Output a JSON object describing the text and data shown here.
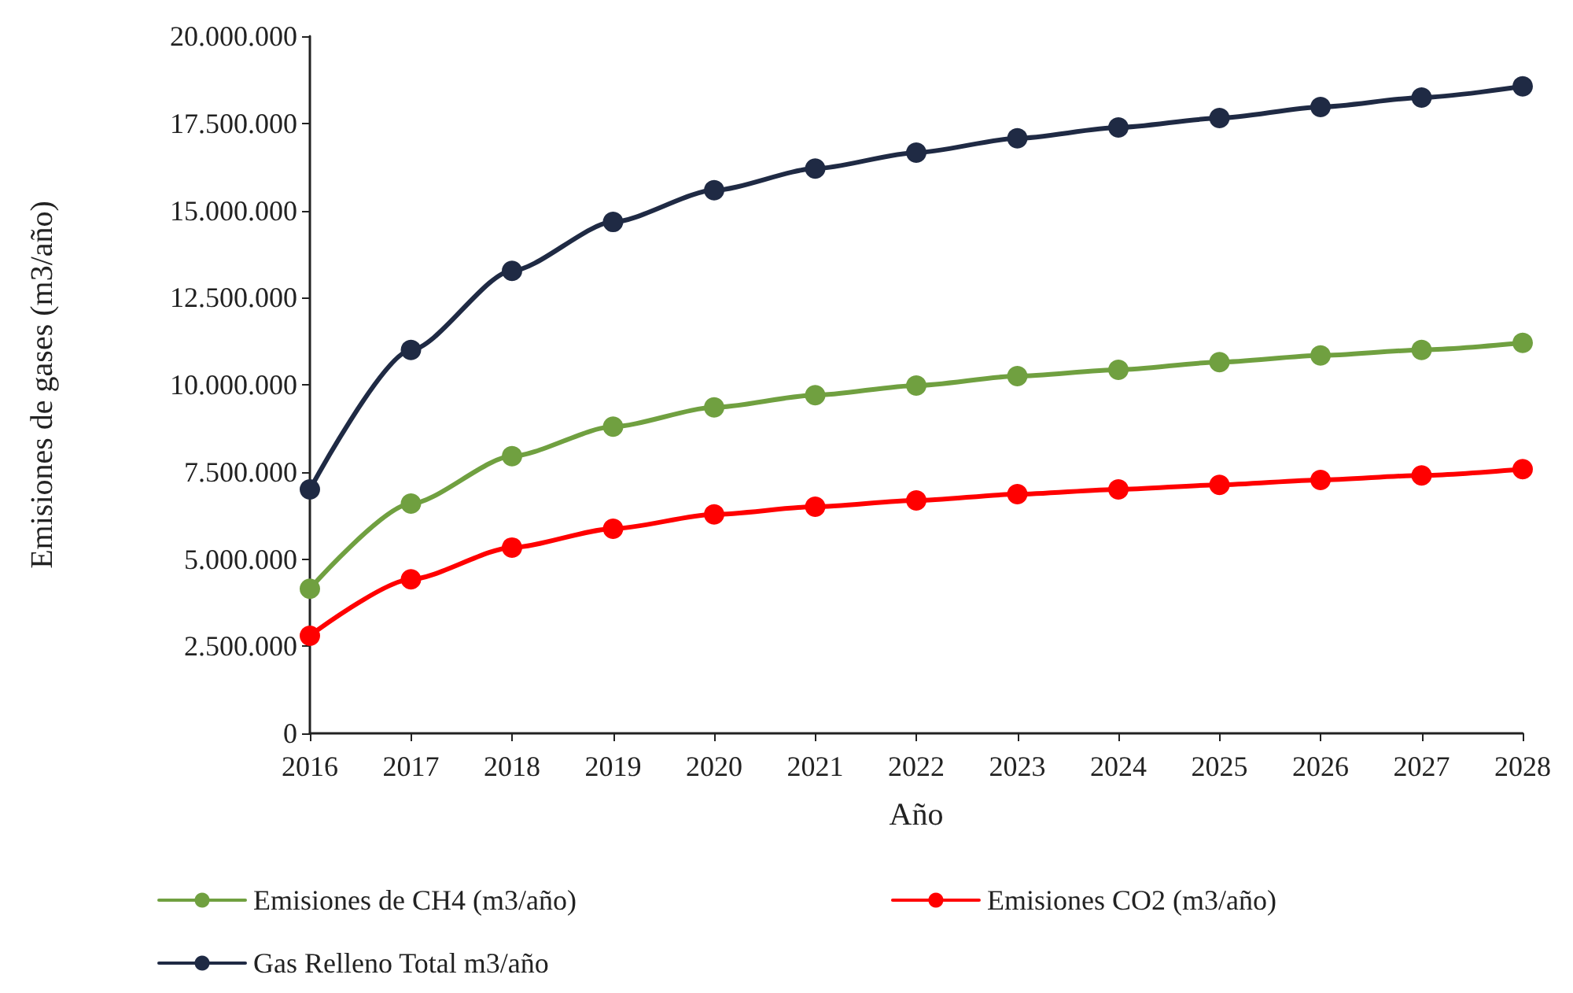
{
  "chart_data": {
    "type": "line",
    "xlabel": "Año",
    "ylabel": "Emisiones de gases (m3/año)",
    "categories": [
      "2016",
      "2017",
      "2018",
      "2019",
      "2020",
      "2021",
      "2022",
      "2023",
      "2024",
      "2025",
      "2026",
      "2027",
      "2028"
    ],
    "series": [
      {
        "name": "Emisiones de CH4 (m3/año)",
        "color": "#70a040",
        "values": [
          4150000,
          6590000,
          7950000,
          8800000,
          9350000,
          9700000,
          9980000,
          10250000,
          10430000,
          10650000,
          10840000,
          11000000,
          11200000
        ]
      },
      {
        "name": "Emisiones CO2 (m3/año)",
        "color": "#ff0000",
        "values": [
          2800000,
          4420000,
          5330000,
          5870000,
          6280000,
          6500000,
          6680000,
          6860000,
          7000000,
          7130000,
          7270000,
          7400000,
          7580000
        ]
      },
      {
        "name": "Gas Relleno Total m3/año",
        "color": "#1f2a44",
        "values": [
          7000000,
          11000000,
          13270000,
          14670000,
          15580000,
          16200000,
          16660000,
          17070000,
          17380000,
          17650000,
          17970000,
          18240000,
          18560000
        ]
      }
    ],
    "ylim": [
      0,
      20000000
    ],
    "yticks": [
      {
        "value": 0,
        "label": "0"
      },
      {
        "value": 2500000,
        "label": "2.500.000"
      },
      {
        "value": 5000000,
        "label": "5.000.000"
      },
      {
        "value": 7500000,
        "label": "7.500.000"
      },
      {
        "value": 10000000,
        "label": "10.000.000"
      },
      {
        "value": 12500000,
        "label": "12.500.000"
      },
      {
        "value": 15000000,
        "label": "15.000.000"
      },
      {
        "value": 17500000,
        "label": "17.500.000"
      },
      {
        "value": 20000000,
        "label": "20.000.000"
      }
    ],
    "grid": false,
    "legend": "bottom",
    "marker": "circle",
    "line_style": "solid"
  }
}
